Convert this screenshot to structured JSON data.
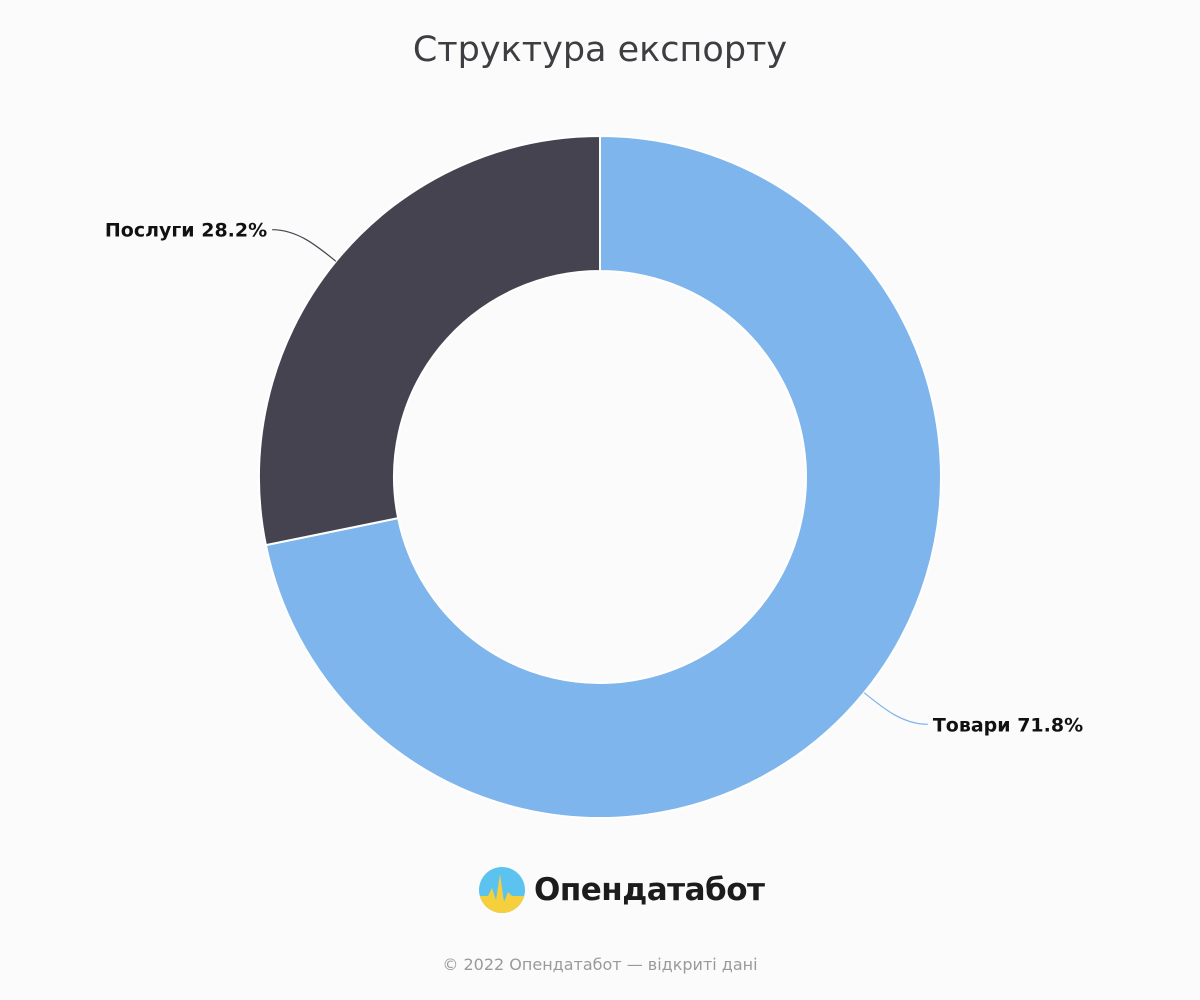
{
  "chart_data": {
    "type": "pie",
    "title": "Структура експорту",
    "donut": true,
    "slices": [
      {
        "name": "Товари",
        "value": 71.8,
        "label": "Товари 71.8%",
        "color": "#7eb5ec"
      },
      {
        "name": "Послуги",
        "value": 28.2,
        "label": "Послуги 28.2%",
        "color": "#45434f"
      }
    ]
  },
  "logo": {
    "text": "Опендатабот",
    "icon": "opendatabot-logo-icon"
  },
  "footer": {
    "text": "© 2022 Опендатабот — відкриті дані"
  }
}
